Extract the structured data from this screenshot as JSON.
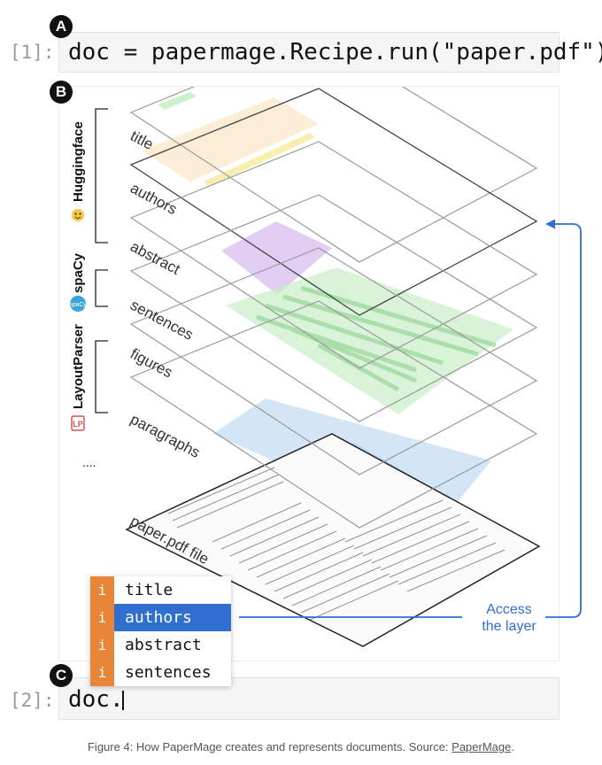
{
  "badges": {
    "a": "A",
    "b": "B",
    "c": "C"
  },
  "cell1": {
    "prompt": "[1]:",
    "code": "doc = papermage.Recipe.run(\"paper.pdf\")"
  },
  "cell2": {
    "prompt": "[2]:",
    "code": "doc."
  },
  "layers": [
    "title",
    "authors",
    "abstract",
    "sentences",
    "figures",
    "paragraphs",
    "paper.pdf file"
  ],
  "tools": [
    "Huggingface",
    "spaCy",
    "LayoutParser"
  ],
  "more_tools": "....",
  "dropdown": {
    "icon": "i",
    "items": [
      "title",
      "authors",
      "abstract",
      "sentences"
    ],
    "selected_index": 1
  },
  "access_label": {
    "line1": "Access",
    "line2": "the layer"
  },
  "caption": {
    "text": "Figure 4: How PaperMage creates and represents documents. Source: ",
    "link": "PaperMage",
    "end": "."
  },
  "colors": {
    "accent": "#2f6fd0",
    "icon_orange": "#e88537",
    "title_fill": "#fbe7c8",
    "abstract_fill": "#dcc6f0",
    "sentences_fill": "#c8eec8",
    "paragraphs_fill": "#c6def3"
  },
  "icons": [
    "hugging-face-icon",
    "spacy-icon",
    "layoutparser-icon"
  ]
}
